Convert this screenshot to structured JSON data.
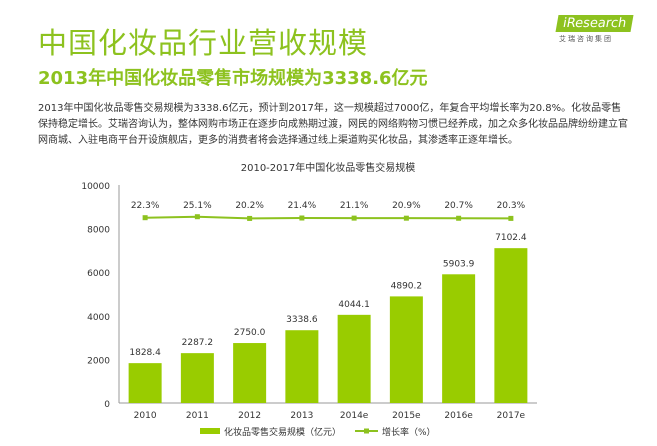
{
  "header": {
    "title": "中国化妆品行业营收规模",
    "subtitle": "2013年中国化妆品零售市场规模为3338.6亿元",
    "logo_text": "iResearch",
    "logo_cn": "艾瑞咨询集团"
  },
  "body_text": "2013年中国化妆品零售交易规模为3338.6亿元，预计到2017年，这一规模超过7000亿，年复合平均增长率为20.8%。化妆品零售保持稳定增长。艾瑞咨询认为，整体网购市场正在逐步向成熟期过渡，网民的网络购物习惯已经养成，加之众多化妆品品牌纷纷建立官网商城、入驻电商平台开设旗舰店，更多的消费者将会选择通过线上渠道购买化妆品，其渗透率正逐年增长。",
  "colors": {
    "accent": "#8dc21f",
    "bar": "#99cc00",
    "line": "#8dc21f"
  },
  "chart_data": {
    "type": "bar",
    "title": "2010-2017年中国化妆品零售交易规模",
    "categories": [
      "2010",
      "2011",
      "2012",
      "2013",
      "2014e",
      "2015e",
      "2016e",
      "2017e"
    ],
    "series": [
      {
        "name": "化妆品零售交易规模（亿元）",
        "type": "bar",
        "values": [
          1828.4,
          2287.2,
          2750.0,
          3338.6,
          4044.1,
          4890.2,
          5903.9,
          7102.4
        ],
        "labels": [
          "1828.4",
          "2287.2",
          "2750.0",
          "3338.6",
          "4044.1",
          "4890.2",
          "5903.9",
          "7102.4"
        ]
      },
      {
        "name": "增长率（%）",
        "type": "line",
        "values": [
          22.3,
          25.1,
          20.2,
          21.4,
          21.1,
          20.9,
          20.7,
          20.3
        ],
        "labels": [
          "22.3%",
          "25.1%",
          "20.2%",
          "21.4%",
          "21.1%",
          "20.9%",
          "20.7%",
          "20.3%"
        ]
      }
    ],
    "ylim": [
      0,
      10000
    ],
    "yticks": [
      "0",
      "2000",
      "4000",
      "6000",
      "8000",
      "10000"
    ],
    "grid": false,
    "legend": "bottom"
  }
}
